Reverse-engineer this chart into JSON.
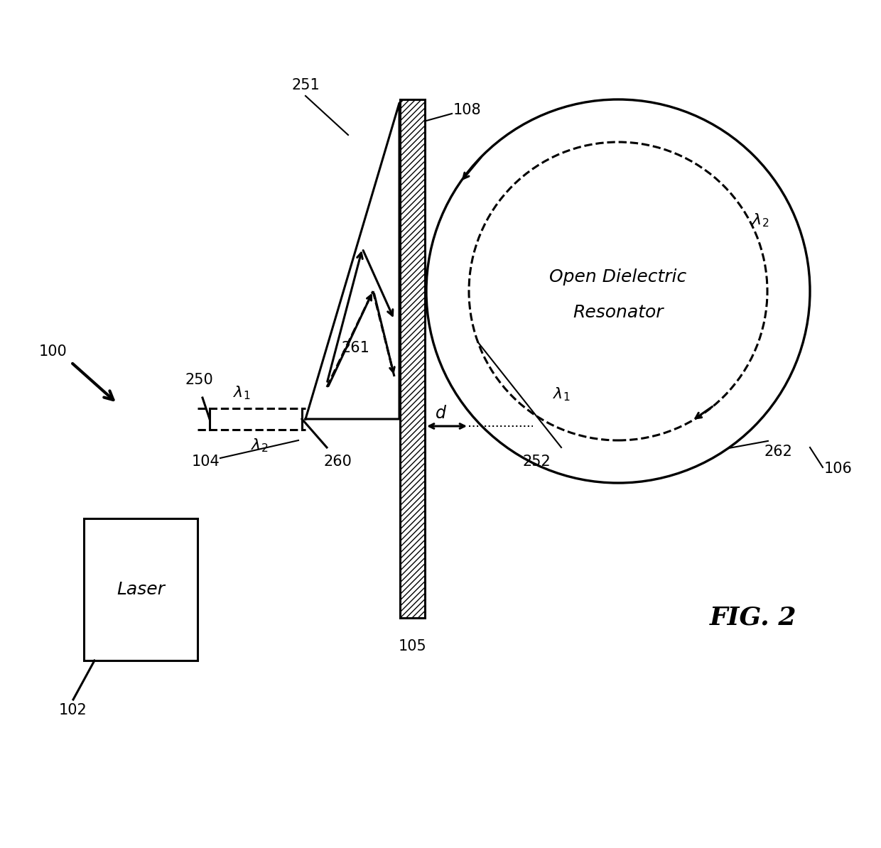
{
  "bg_color": "#ffffff",
  "line_color": "#000000",
  "fig_title": "FIG. 2",
  "label_100": "100",
  "label_102": "102",
  "label_104": "104",
  "label_105": "105",
  "label_106": "106",
  "label_108": "108",
  "label_250": "250",
  "label_251": "251",
  "label_252": "252",
  "label_260": "260",
  "label_261": "261",
  "label_262": "262",
  "label_laser": "Laser",
  "label_resonator_line1": "Open Dielectric",
  "label_resonator_line2": "Resonator",
  "label_d": "d",
  "font_size_labels": 15,
  "font_size_title": 26,
  "font_size_component": 18,
  "lw": 2.2
}
